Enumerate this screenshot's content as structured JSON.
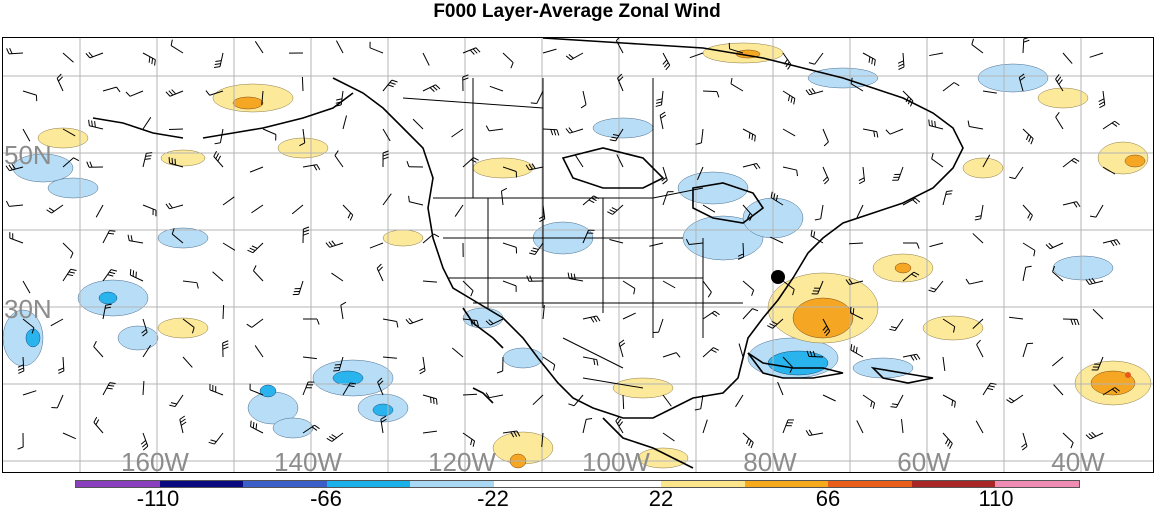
{
  "title": "F000 Layer-Average Zonal Wind",
  "lat_labels": [
    "50N",
    "30N"
  ],
  "lon_labels": [
    "160W",
    "140W",
    "120W",
    "100W",
    "80W",
    "60W",
    "40W"
  ],
  "colorbar": {
    "labels": [
      "-110",
      "-66",
      "-22",
      "22",
      "66",
      "110"
    ],
    "colors": [
      "#8a3fbf",
      "#0a0a80",
      "#3a5fc8",
      "#1ab0ea",
      "#a8d8f4",
      "#ffffff",
      "#ffffff",
      "#fce58a",
      "#f7a91c",
      "#e85d1a",
      "#a82626",
      "#f08cb4"
    ]
  },
  "palette": {
    "light_blue": "#b8def7",
    "mid_blue": "#2ab4ee",
    "light_yellow": "#fde99a",
    "orange": "#f5a623",
    "red_orange": "#e85a1c",
    "grid": "#b4b4b4",
    "coast": "#000000"
  }
}
